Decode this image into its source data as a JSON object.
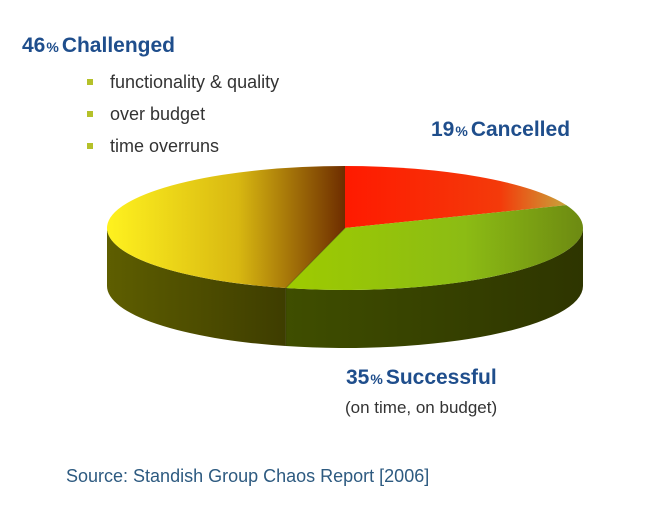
{
  "chart_data": {
    "type": "pie",
    "slices": [
      {
        "label": "Cancelled",
        "value": 19,
        "display": "19",
        "color": "#ff2b08"
      },
      {
        "label": "Successful",
        "value": 35,
        "display": "35",
        "color": "#8fc20a"
      },
      {
        "label": "Challenged",
        "value": 46,
        "display": "46",
        "color": "#f5e81a"
      }
    ],
    "percent_sign": "%",
    "challenged_bullets": [
      "functionality & quality",
      "over budget",
      "time overruns"
    ],
    "successful_note": "(on time, on budget)",
    "source": "Source: Standish Group Chaos Report [2006]",
    "style_3d": true,
    "bullet_color": "#b5c12a",
    "title_color": "#1f4e8c"
  }
}
